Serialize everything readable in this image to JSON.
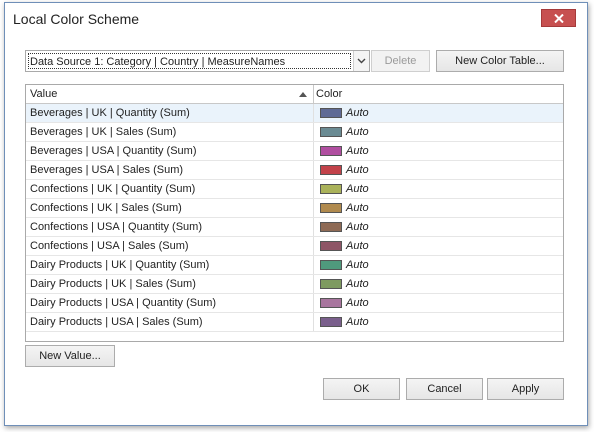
{
  "window": {
    "title": "Local Color Scheme"
  },
  "toolbar": {
    "data_source": "Data Source 1: Category | Country | MeasureNames",
    "delete_label": "Delete",
    "new_table_label": "New Color Table..."
  },
  "grid": {
    "headers": {
      "value": "Value",
      "color": "Color"
    },
    "rows": [
      {
        "value": "Beverages | UK | Quantity (Sum)",
        "color": "#5f6a95",
        "color_text": "Auto"
      },
      {
        "value": "Beverages | UK | Sales (Sum)",
        "color": "#6a8b93",
        "color_text": "Auto"
      },
      {
        "value": "Beverages | USA | Quantity (Sum)",
        "color": "#b04ea0",
        "color_text": "Auto"
      },
      {
        "value": "Beverages | USA | Sales (Sum)",
        "color": "#c2424a",
        "color_text": "Auto"
      },
      {
        "value": "Confections | UK | Quantity (Sum)",
        "color": "#aab25a",
        "color_text": "Auto"
      },
      {
        "value": "Confections | UK | Sales (Sum)",
        "color": "#b08a4e",
        "color_text": "Auto"
      },
      {
        "value": "Confections | USA | Quantity (Sum)",
        "color": "#8e6a55",
        "color_text": "Auto"
      },
      {
        "value": "Confections | USA | Sales (Sum)",
        "color": "#8e5566",
        "color_text": "Auto"
      },
      {
        "value": "Dairy Products | UK | Quantity (Sum)",
        "color": "#4f9a7d",
        "color_text": "Auto"
      },
      {
        "value": "Dairy Products | UK | Sales (Sum)",
        "color": "#7e9a60",
        "color_text": "Auto"
      },
      {
        "value": "Dairy Products | USA | Quantity (Sum)",
        "color": "#a8759e",
        "color_text": "Auto"
      },
      {
        "value": "Dairy Products | USA | Sales (Sum)",
        "color": "#7a5f8c",
        "color_text": "Auto"
      }
    ]
  },
  "footer": {
    "new_value_label": "New Value...",
    "ok_label": "OK",
    "cancel_label": "Cancel",
    "apply_label": "Apply"
  },
  "colors": {
    "close_button": "#c75050",
    "selected_row": "#eaf3fb"
  }
}
